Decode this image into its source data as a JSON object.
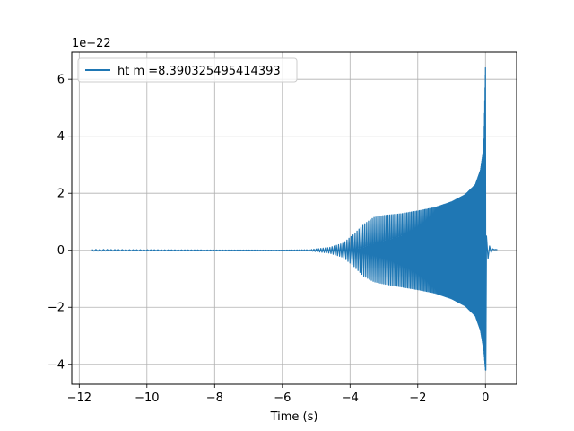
{
  "chart_data": {
    "type": "line",
    "title": "",
    "xlabel": "Time (s)",
    "ylabel": "",
    "offset_text": "1e−22",
    "xlim": [
      -12.22,
      0.92
    ],
    "ylim": [
      -4.7,
      6.95
    ],
    "x_ticks": [
      -12,
      -10,
      -8,
      -6,
      -4,
      -2,
      0
    ],
    "x_tick_labels": [
      "−12",
      "−10",
      "−8",
      "−6",
      "−4",
      "−2",
      "0"
    ],
    "y_ticks": [
      -4,
      -2,
      0,
      2,
      4,
      6
    ],
    "y_tick_labels": [
      "−4",
      "−2",
      "0",
      "2",
      "4",
      "6"
    ],
    "grid": true,
    "legend_position": "upper-left",
    "series": [
      {
        "name": "ht m =8.390325495414393",
        "color": "#1f77b4",
        "x_start": -11.62,
        "x_merger": 0.0,
        "x_end": 0.35,
        "envelope": {
          "x": [
            -11.62,
            -10.5,
            -8.0,
            -6.0,
            -5.2,
            -4.6,
            -4.2,
            -3.9,
            -3.6,
            -3.3,
            -3.0,
            -2.5,
            -2.0,
            -1.5,
            -1.0,
            -0.6,
            -0.3,
            -0.15,
            -0.05,
            0.0
          ],
          "upper": [
            0.03,
            0.02,
            0.01,
            0.005,
            0.02,
            0.1,
            0.25,
            0.55,
            0.9,
            1.15,
            1.22,
            1.28,
            1.38,
            1.5,
            1.7,
            1.95,
            2.3,
            2.8,
            3.6,
            6.4
          ],
          "lower": [
            -0.03,
            -0.02,
            -0.01,
            -0.005,
            -0.02,
            -0.1,
            -0.25,
            -0.55,
            -0.9,
            -1.1,
            -1.18,
            -1.28,
            -1.38,
            -1.5,
            -1.7,
            -1.95,
            -2.3,
            -2.8,
            -3.5,
            -4.2
          ]
        }
      }
    ]
  }
}
